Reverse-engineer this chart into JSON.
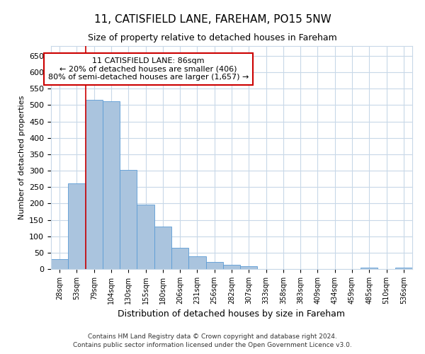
{
  "title1": "11, CATISFIELD LANE, FAREHAM, PO15 5NW",
  "title2": "Size of property relative to detached houses in Fareham",
  "xlabel": "Distribution of detached houses by size in Fareham",
  "ylabel": "Number of detached properties",
  "categories": [
    "28sqm",
    "53sqm",
    "79sqm",
    "104sqm",
    "130sqm",
    "155sqm",
    "180sqm",
    "206sqm",
    "231sqm",
    "256sqm",
    "282sqm",
    "307sqm",
    "333sqm",
    "358sqm",
    "383sqm",
    "409sqm",
    "434sqm",
    "459sqm",
    "485sqm",
    "510sqm",
    "536sqm"
  ],
  "values": [
    30,
    262,
    515,
    512,
    303,
    197,
    130,
    65,
    38,
    22,
    14,
    8,
    0,
    0,
    0,
    0,
    0,
    0,
    5,
    0,
    5
  ],
  "bar_color": "#aac4de",
  "bar_edge_color": "#5b9bd5",
  "property_label": "11 CATISFIELD LANE: 86sqm",
  "annotation_line1": "← 20% of detached houses are smaller (406)",
  "annotation_line2": "80% of semi-detached houses are larger (1,657) →",
  "vline_color": "#cc0000",
  "vline_x_index": 1.5,
  "ylim": [
    0,
    680
  ],
  "yticks": [
    0,
    50,
    100,
    150,
    200,
    250,
    300,
    350,
    400,
    450,
    500,
    550,
    600,
    650
  ],
  "background_color": "#ffffff",
  "grid_color": "#c8d8e8",
  "footnote1": "Contains HM Land Registry data © Crown copyright and database right 2024.",
  "footnote2": "Contains public sector information licensed under the Open Government Licence v3.0."
}
